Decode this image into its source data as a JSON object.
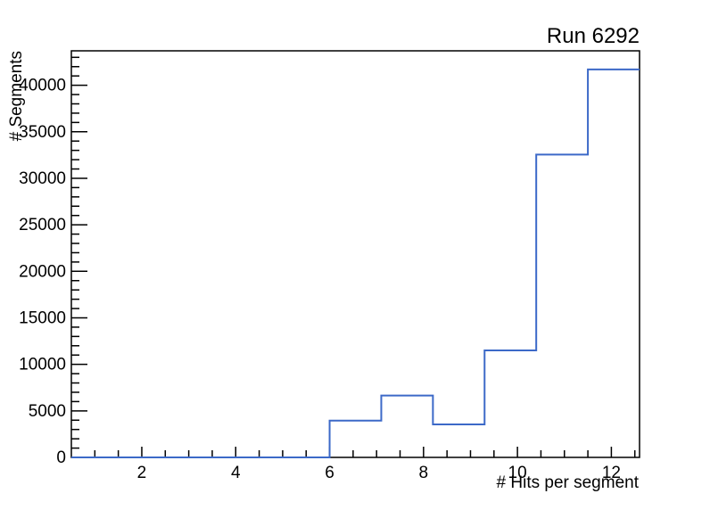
{
  "window": {
    "background_color": "#ffffff"
  },
  "chart_data": {
    "type": "bar",
    "style": "step-histogram",
    "title": "Run 6292",
    "xlabel": "# Hits per segment",
    "ylabel": "# Segments",
    "xlim": [
      0.5,
      12.6
    ],
    "ylim": [
      0,
      43700
    ],
    "bin_edges": [
      0.5,
      1.6,
      2.7,
      3.8,
      4.9,
      6.0,
      7.1,
      8.2,
      9.3,
      10.4,
      11.5,
      12.6
    ],
    "values": [
      0,
      0,
      0,
      0,
      0,
      3950,
      6650,
      3550,
      11500,
      32550,
      41700
    ],
    "x_major_ticks": [
      2,
      4,
      6,
      8,
      10,
      12
    ],
    "x_major_tick_labels": [
      "2",
      "4",
      "6",
      "8",
      "10",
      "12"
    ],
    "x_minor_step": 0.5,
    "y_major_ticks": [
      0,
      5000,
      10000,
      15000,
      20000,
      25000,
      30000,
      35000,
      40000
    ],
    "y_major_tick_labels": [
      "0",
      "5000",
      "10000",
      "15000",
      "20000",
      "25000",
      "30000",
      "35000",
      "40000"
    ],
    "y_minor_step": 1000,
    "grid": false,
    "legend": null,
    "colors": {
      "hist_line": "#3c69c8",
      "axis": "#000000",
      "text": "#000000"
    }
  }
}
